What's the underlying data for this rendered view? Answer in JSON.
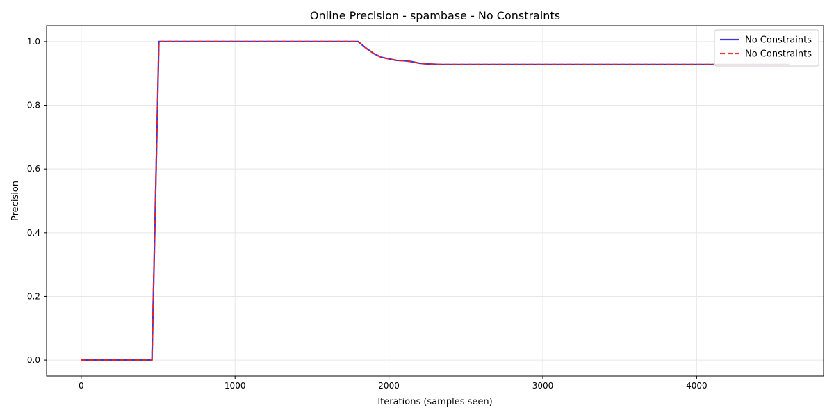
{
  "chart_data": {
    "type": "line",
    "title": "Online Precision - spambase - No Constraints",
    "xlabel": "Iterations (samples seen)",
    "ylabel": "Precision",
    "xlim": [
      -225,
      4825
    ],
    "ylim": [
      -0.05,
      1.05
    ],
    "xticks": [
      0,
      1000,
      2000,
      3000,
      4000
    ],
    "xtick_labels": [
      "0",
      "1000",
      "2000",
      "3000",
      "4000"
    ],
    "yticks": [
      0.0,
      0.2,
      0.4,
      0.6,
      0.8,
      1.0
    ],
    "ytick_labels": [
      "0.0",
      "0.2",
      "0.4",
      "0.6",
      "0.8",
      "1.0"
    ],
    "grid": true,
    "legend_position": "top-right",
    "series": [
      {
        "name": "No Constraints",
        "color": "#2222dd",
        "style": "solid",
        "x": [
          0,
          460,
          505,
          1800,
          1850,
          1900,
          1950,
          2000,
          2050,
          2100,
          2150,
          2200,
          2250,
          2300,
          2350,
          2400,
          3000,
          4000,
          4600
        ],
        "y": [
          0.0,
          0.0,
          1.0,
          1.0,
          0.98,
          0.963,
          0.951,
          0.946,
          0.941,
          0.94,
          0.937,
          0.932,
          0.93,
          0.929,
          0.928,
          0.928,
          0.928,
          0.928,
          0.928
        ]
      },
      {
        "name": "No Constraints",
        "color": "#ee2222",
        "style": "dashed",
        "x": [
          0,
          460,
          505,
          1800,
          1850,
          1900,
          1950,
          2000,
          2050,
          2100,
          2150,
          2200,
          2250,
          2300,
          2350,
          2400,
          3000,
          4000,
          4600
        ],
        "y": [
          0.0,
          0.0,
          1.0,
          1.0,
          0.98,
          0.963,
          0.951,
          0.946,
          0.941,
          0.94,
          0.937,
          0.932,
          0.93,
          0.929,
          0.928,
          0.928,
          0.928,
          0.928,
          0.928
        ]
      }
    ]
  }
}
